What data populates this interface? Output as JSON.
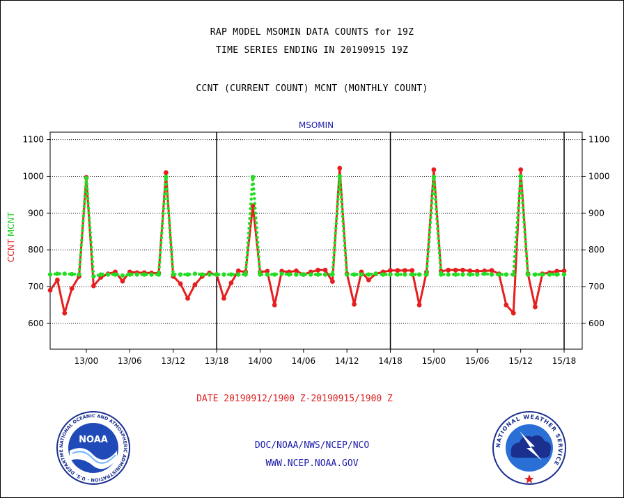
{
  "titles": {
    "line1": "RAP MODEL MSOMIN DATA COUNTS for 19Z",
    "line2": "TIME SERIES ENDING IN 20190915 19Z",
    "line3": "CCNT (CURRENT COUNT) MCNT (MONTHLY COUNT)"
  },
  "footer": {
    "date_range": "DATE 20190912/1900 Z-20190915/1900 Z",
    "org": "DOC/NOAA/NWS/NCEP/NCO",
    "url": "WWW.NCEP.NOAA.GOV"
  },
  "logos": {
    "noaa_text": "NOAA",
    "noaa_ring": "NATIONAL OCEANIC AND ATMOSPHERIC ADMINISTRATION · U.S. DEPARTMENT OF COMMERCE",
    "nws_ring": "NATIONAL WEATHER SERVICE"
  },
  "chart_data": {
    "type": "line",
    "title": "MSOMIN",
    "ylabel_parts": [
      {
        "text": "CCNT",
        "color": "#e02020"
      },
      {
        "text": "MCNT",
        "color": "#22cc22"
      }
    ],
    "ylim": [
      530,
      1120
    ],
    "yticks": [
      600,
      700,
      800,
      900,
      1000,
      1100
    ],
    "xlim": [
      0,
      73.5
    ],
    "xticks": [
      {
        "x": 5,
        "label": "13/00"
      },
      {
        "x": 11,
        "label": "13/06"
      },
      {
        "x": 17,
        "label": "13/12"
      },
      {
        "x": 23,
        "label": "13/18"
      },
      {
        "x": 29,
        "label": "14/00"
      },
      {
        "x": 35,
        "label": "14/06"
      },
      {
        "x": 41,
        "label": "14/12"
      },
      {
        "x": 47,
        "label": "14/18"
      },
      {
        "x": 53,
        "label": "15/00"
      },
      {
        "x": 59,
        "label": "15/06"
      },
      {
        "x": 65,
        "label": "15/12"
      },
      {
        "x": 71,
        "label": "15/18"
      }
    ],
    "day_separators": [
      23,
      47,
      71
    ],
    "grid": "horizontal dotted",
    "series": [
      {
        "name": "CCNT",
        "color": "#e61e1e",
        "values": [
          690,
          718,
          628,
          695,
          728,
          997,
          702,
          725,
          735,
          740,
          715,
          740,
          738,
          738,
          737,
          737,
          1010,
          728,
          708,
          668,
          705,
          728,
          737,
          733,
          668,
          710,
          743,
          740,
          920,
          740,
          742,
          650,
          742,
          740,
          743,
          733,
          740,
          745,
          745,
          714,
          1022,
          735,
          652,
          740,
          718,
          735,
          740,
          744,
          744,
          744,
          744,
          650,
          740,
          1018,
          742,
          745,
          745,
          745,
          743,
          742,
          743,
          744,
          735,
          650,
          628,
          1018,
          735,
          645,
          735,
          738,
          742,
          743
        ]
      },
      {
        "name": "MCNT",
        "color": "#22dd22",
        "values": [
          733,
          735,
          735,
          734,
          733,
          995,
          728,
          733,
          733,
          733,
          730,
          733,
          733,
          733,
          733,
          733,
          998,
          733,
          733,
          733,
          735,
          733,
          733,
          733,
          733,
          733,
          733,
          733,
          998,
          733,
          733,
          733,
          735,
          733,
          733,
          733,
          733,
          733,
          733,
          733,
          1000,
          733,
          733,
          733,
          733,
          735,
          733,
          733,
          733,
          733,
          733,
          733,
          733,
          998,
          733,
          733,
          733,
          733,
          733,
          733,
          735,
          733,
          733,
          733,
          733,
          1000,
          733,
          733,
          733,
          733,
          733,
          733
        ]
      }
    ]
  }
}
